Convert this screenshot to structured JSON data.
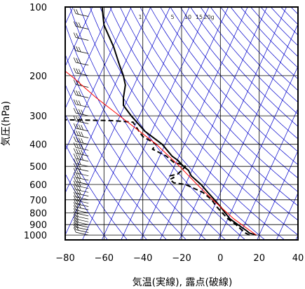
{
  "chart_data": {
    "type": "line",
    "xlabel": "気温(実線), 露点(破線)",
    "ylabel": "気圧(hPa)",
    "xlim": [
      -80,
      40
    ],
    "ylim": [
      1050,
      100
    ],
    "y_scale": "log",
    "x_ticks": [
      -80,
      -60,
      -40,
      -20,
      0,
      20,
      40
    ],
    "y_ticks": [
      100,
      200,
      300,
      400,
      500,
      600,
      700,
      800,
      900,
      1000
    ],
    "mixing_ratio_labels": [
      "1",
      "5",
      "10",
      "15",
      "20g"
    ],
    "grid": true,
    "series": [
      {
        "style": "solid",
        "color": "#000000",
        "points": [
          {
            "p": 1000,
            "t": 18.5
          },
          {
            "p": 980,
            "t": 15
          },
          {
            "p": 950,
            "t": 13
          },
          {
            "p": 900,
            "t": 9
          },
          {
            "p": 850,
            "t": 5
          },
          {
            "p": 800,
            "t": 2.5
          },
          {
            "p": 750,
            "t": 0
          },
          {
            "p": 700,
            "t": -3
          },
          {
            "p": 650,
            "t": -6.5
          },
          {
            "p": 600,
            "t": -10
          },
          {
            "p": 570,
            "t": -13
          },
          {
            "p": 550,
            "t": -15
          },
          {
            "p": 520,
            "t": -16.5
          },
          {
            "p": 500,
            "t": -19
          },
          {
            "p": 470,
            "t": -22
          },
          {
            "p": 450,
            "t": -25
          },
          {
            "p": 400,
            "t": -30
          },
          {
            "p": 350,
            "t": -39
          },
          {
            "p": 300,
            "t": -46
          },
          {
            "p": 270,
            "t": -50
          },
          {
            "p": 250,
            "t": -50
          },
          {
            "p": 220,
            "t": -49
          },
          {
            "p": 200,
            "t": -50
          },
          {
            "p": 180,
            "t": -52
          },
          {
            "p": 150,
            "t": -55
          },
          {
            "p": 120,
            "t": -60
          },
          {
            "p": 100,
            "t": -61
          }
        ]
      },
      {
        "style": "dashed",
        "color": "#000000",
        "points": [
          {
            "p": 1000,
            "t": 15
          },
          {
            "p": 980,
            "t": 13
          },
          {
            "p": 950,
            "t": 11
          },
          {
            "p": 900,
            "t": 8
          },
          {
            "p": 850,
            "t": 4
          },
          {
            "p": 800,
            "t": 1
          },
          {
            "p": 750,
            "t": -2
          },
          {
            "p": 700,
            "t": -4.5
          },
          {
            "p": 650,
            "t": -9
          },
          {
            "p": 600,
            "t": -18
          },
          {
            "p": 590,
            "t": -24
          },
          {
            "p": 570,
            "t": -26
          },
          {
            "p": 560,
            "t": -24
          },
          {
            "p": 550,
            "t": -26
          },
          {
            "p": 540,
            "t": -22
          },
          {
            "p": 520,
            "t": -20
          },
          {
            "p": 500,
            "t": -18
          },
          {
            "p": 490,
            "t": -20
          },
          {
            "p": 480,
            "t": -24
          },
          {
            "p": 450,
            "t": -28
          },
          {
            "p": 420,
            "t": -35
          },
          {
            "p": 400,
            "t": -33
          },
          {
            "p": 370,
            "t": -40
          },
          {
            "p": 350,
            "t": -42
          },
          {
            "p": 320,
            "t": -45
          },
          {
            "p": 315,
            "t": -55
          },
          {
            "p": 312,
            "t": -80
          }
        ]
      },
      {
        "style": "solid",
        "color": "#ff0000",
        "points": [
          {
            "p": 1000,
            "t": 18.5
          },
          {
            "p": 850,
            "t": 7
          },
          {
            "p": 700,
            "t": -4
          },
          {
            "p": 600,
            "t": -12
          },
          {
            "p": 500,
            "t": -21
          },
          {
            "p": 400,
            "t": -33
          },
          {
            "p": 300,
            "t": -52
          },
          {
            "p": 250,
            "t": -64
          },
          {
            "p": 200,
            "t": -77
          },
          {
            "p": 180,
            "t": -84
          }
        ]
      }
    ],
    "wind_barbs": [
      {
        "p": 1000,
        "u": 4,
        "v": 2
      },
      {
        "p": 975,
        "u": 5,
        "v": 3
      },
      {
        "p": 950,
        "u": 6,
        "v": 2
      },
      {
        "p": 925,
        "u": 6,
        "v": 4
      },
      {
        "p": 900,
        "u": 5,
        "v": 5
      },
      {
        "p": 875,
        "u": 4,
        "v": 4
      },
      {
        "p": 850,
        "u": 3,
        "v": 4
      },
      {
        "p": 825,
        "u": 3,
        "v": 5
      },
      {
        "p": 800,
        "u": 4,
        "v": 5
      },
      {
        "p": 775,
        "u": 6,
        "v": 5
      },
      {
        "p": 750,
        "u": 8,
        "v": 4
      },
      {
        "p": 725,
        "u": 9,
        "v": 3
      },
      {
        "p": 700,
        "u": 9,
        "v": 5
      },
      {
        "p": 675,
        "u": 8,
        "v": 6
      },
      {
        "p": 650,
        "u": 7,
        "v": 5
      },
      {
        "p": 625,
        "u": 7,
        "v": 4
      },
      {
        "p": 600,
        "u": 8,
        "v": 3
      },
      {
        "p": 575,
        "u": 8,
        "v": 4
      },
      {
        "p": 550,
        "u": 9,
        "v": 4
      },
      {
        "p": 525,
        "u": 9,
        "v": 3
      },
      {
        "p": 500,
        "u": 10,
        "v": 3
      },
      {
        "p": 475,
        "u": 10,
        "v": 4
      },
      {
        "p": 450,
        "u": 11,
        "v": 4
      },
      {
        "p": 425,
        "u": 11,
        "v": 3
      },
      {
        "p": 400,
        "u": 12,
        "v": 3
      },
      {
        "p": 375,
        "u": 12,
        "v": 4
      },
      {
        "p": 350,
        "u": 12,
        "v": 3
      },
      {
        "p": 325,
        "u": 11,
        "v": 2
      },
      {
        "p": 300,
        "u": 11,
        "v": 3
      },
      {
        "p": 275,
        "u": 10,
        "v": 3
      },
      {
        "p": 250,
        "u": 10,
        "v": 2
      },
      {
        "p": 225,
        "u": 9,
        "v": 3
      },
      {
        "p": 200,
        "u": 9,
        "v": 2
      },
      {
        "p": 180,
        "u": 8,
        "v": 2
      },
      {
        "p": 160,
        "u": 8,
        "v": 3
      },
      {
        "p": 140,
        "u": 7,
        "v": 2
      },
      {
        "p": 125,
        "u": 7,
        "v": 3
      },
      {
        "p": 110,
        "u": 6,
        "v": 2
      },
      {
        "p": 100,
        "u": 6,
        "v": 2
      }
    ],
    "colors": {
      "frame": "#000000",
      "grid": "#000000",
      "dry_adiabat": "#0000cc",
      "isotherm": "#0000cc",
      "temperature": "#000000",
      "dewpoint": "#000000",
      "parcel": "#ff0000"
    }
  }
}
